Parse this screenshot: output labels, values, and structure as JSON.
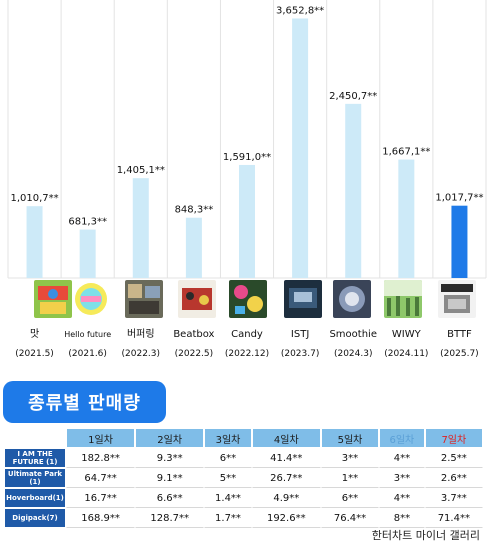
{
  "chart_data": {
    "type": "bar",
    "categories": [
      "맛",
      "Hello future",
      "버퍼링",
      "Beatbox",
      "Candy",
      "ISTJ",
      "Smoothie",
      "WIWY",
      "BTTF"
    ],
    "dates": [
      "(2021.5)",
      "(2021.6)",
      "(2022.3)",
      "(2022.5)",
      "(2022.12)",
      "(2023.7)",
      "(2024.3)",
      "(2024.11)",
      "(2025.7)"
    ],
    "values": [
      1010.7,
      681.3,
      1405.1,
      848.3,
      1591.0,
      3652.8,
      2450.7,
      1667.1,
      1017.7
    ],
    "value_labels": [
      "1,010,7**",
      "681,3**",
      "1,405,1**",
      "848,3**",
      "1,591,0**",
      "3,652,8**",
      "2,450,7**",
      "1,667,1**",
      "1,017,7**"
    ],
    "ylim": [
      0,
      3800
    ],
    "grid": true,
    "highlight_index": 8,
    "colors": {
      "bar": "#cdeaf8",
      "highlight": "#1e7ae8",
      "grid": "#e3e3e3"
    }
  },
  "section_title": "종류별 판매량",
  "table": {
    "headers": [
      "1일차",
      "2일차",
      "3일차",
      "4일차",
      "5일차",
      "6일차",
      "7일차"
    ],
    "rows": [
      {
        "label": "I AM THE FUTURE (1)",
        "values": [
          "182.8**",
          "9.3**",
          "6**",
          "41.4**",
          "3**",
          "4**",
          "2.5**"
        ]
      },
      {
        "label": "Ultimate Park (1)",
        "values": [
          "64.7**",
          "9.1**",
          "5**",
          "26.7**",
          "1**",
          "3**",
          "2.6**"
        ]
      },
      {
        "label": "Hoverboard(1)",
        "values": [
          "16.7**",
          "6.6**",
          "1.4**",
          "4.9**",
          "6**",
          "4**",
          "3.7**"
        ]
      },
      {
        "label": "Digipack(7)",
        "values": [
          "168.9**",
          "128.7**",
          "1.7**",
          "192.6**",
          "76.4**",
          "8**",
          "71.4**"
        ]
      }
    ]
  },
  "credit": "한터차트 마이너 갤러리"
}
